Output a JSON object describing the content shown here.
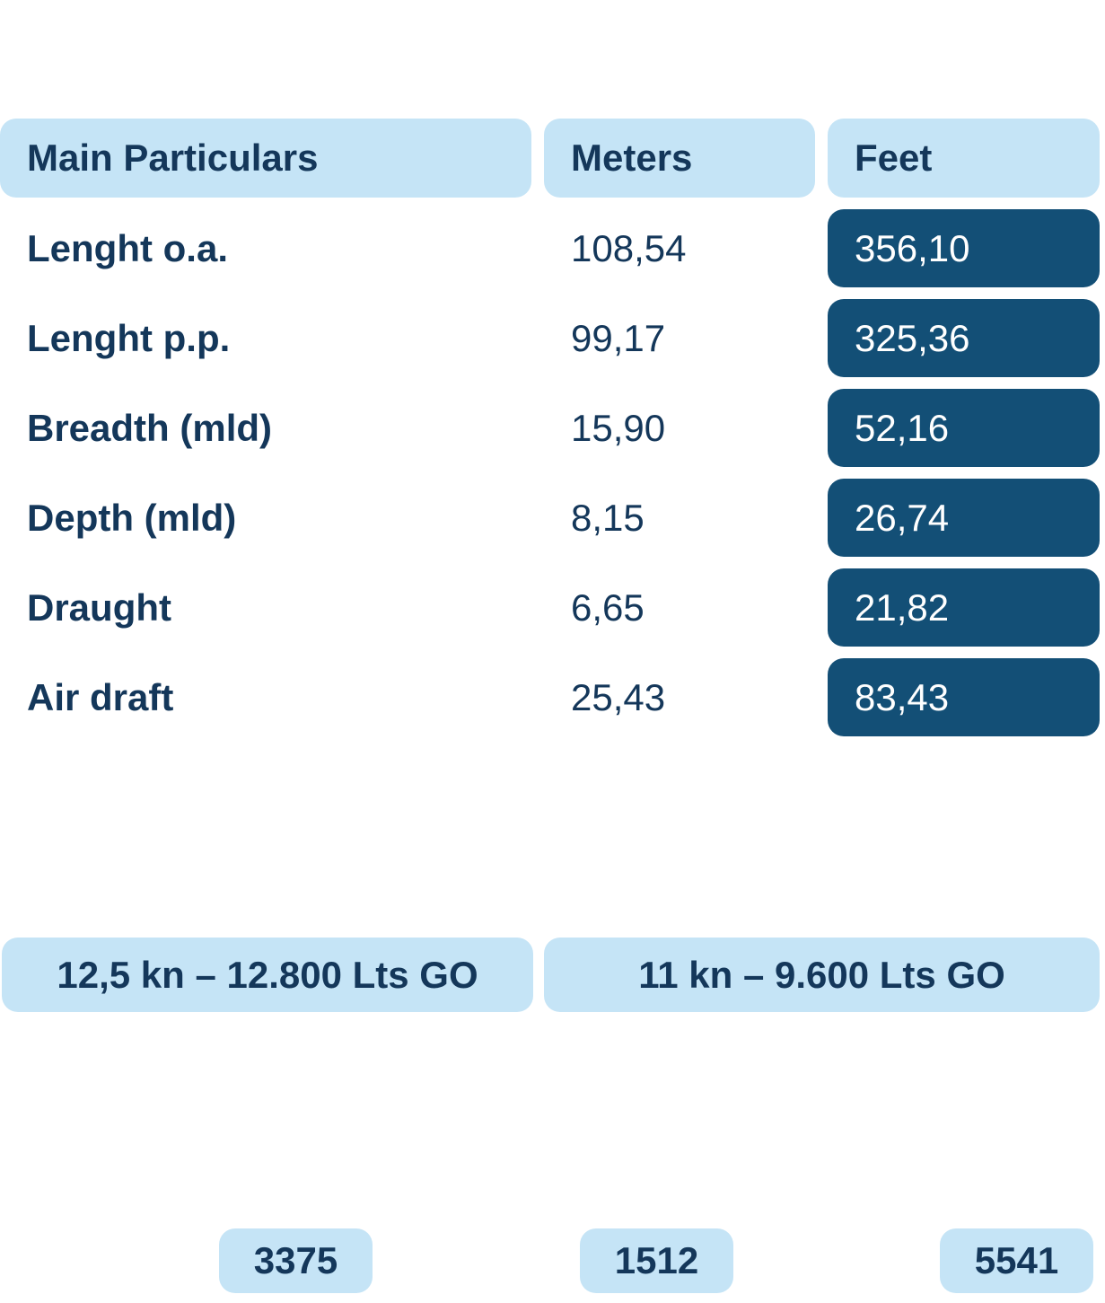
{
  "table": {
    "header": [
      "Main Particulars",
      "Meters",
      "Feet"
    ],
    "rows": [
      [
        "Lenght o.a.",
        "108,54",
        "356,10"
      ],
      [
        "Lenght p.p.",
        "99,17",
        "325,36"
      ],
      [
        "Breadth (mld)",
        "15,90",
        "52,16"
      ],
      [
        "Depth (mld)",
        "8,15",
        "26,74"
      ],
      [
        "Draught",
        "6,65",
        "21,82"
      ],
      [
        "Air draft",
        "25,43",
        "83,43"
      ]
    ]
  },
  "speeds": [
    "12,5 kn – 12.800 Lts GO",
    "11 kn – 9.600 Lts GO"
  ],
  "figures": [
    "3375",
    "1512",
    "5541"
  ]
}
